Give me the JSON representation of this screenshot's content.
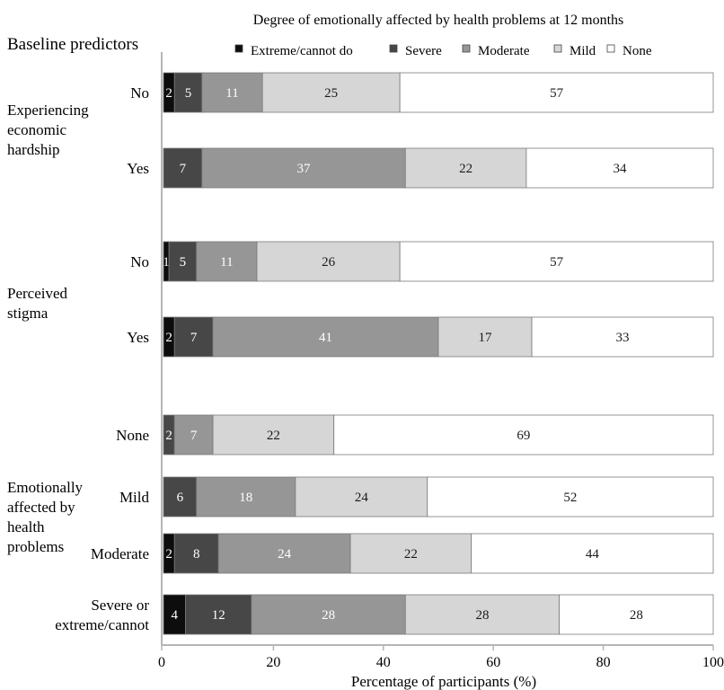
{
  "chart_data": {
    "type": "bar",
    "orientation": "horizontal",
    "stacked": true,
    "title": "Degree of emotionally affected by health problems at 12 months",
    "predictor_heading": "Baseline predictors",
    "xlabel": "Percentage of participants (%)",
    "xlim": [
      0,
      100
    ],
    "xticks": [
      0,
      20,
      40,
      60,
      80,
      100
    ],
    "grid": false,
    "legend_position": "top",
    "series": [
      {
        "name": "Extreme/cannot do",
        "color": "#0d0d0d",
        "text_color": "#ffffff"
      },
      {
        "name": "Severe",
        "color": "#474747",
        "text_color": "#ffffff"
      },
      {
        "name": "Moderate",
        "color": "#969696",
        "text_color": "#ffffff"
      },
      {
        "name": "Mild",
        "color": "#d6d6d6",
        "text_color": "#1a1a1a"
      },
      {
        "name": "None",
        "color": "#ffffff",
        "text_color": "#1a1a1a"
      }
    ],
    "groups": [
      {
        "label": [
          "Experiencing",
          "economic",
          "hardship"
        ],
        "rows": [
          {
            "category": "No",
            "values": [
              2,
              5,
              11,
              25,
              57
            ]
          },
          {
            "category": "Yes",
            "values": [
              0,
              7,
              37,
              22,
              34
            ]
          }
        ]
      },
      {
        "label": [
          "Perceived",
          "stigma"
        ],
        "rows": [
          {
            "category": "No",
            "values": [
              1,
              5,
              11,
              26,
              57
            ]
          },
          {
            "category": "Yes",
            "values": [
              2,
              7,
              41,
              17,
              33
            ]
          }
        ]
      },
      {
        "label": [
          "Emotionally",
          "affected by",
          "health",
          "problems"
        ],
        "rows": [
          {
            "category": "None",
            "values": [
              0,
              2,
              7,
              22,
              69
            ]
          },
          {
            "category": "Mild",
            "values": [
              0,
              6,
              18,
              24,
              52
            ]
          },
          {
            "category": "Moderate",
            "values": [
              2,
              8,
              24,
              22,
              44
            ]
          },
          {
            "category": "Severe or extreme/cannot",
            "values": [
              4,
              12,
              28,
              28,
              28
            ]
          }
        ]
      }
    ]
  }
}
